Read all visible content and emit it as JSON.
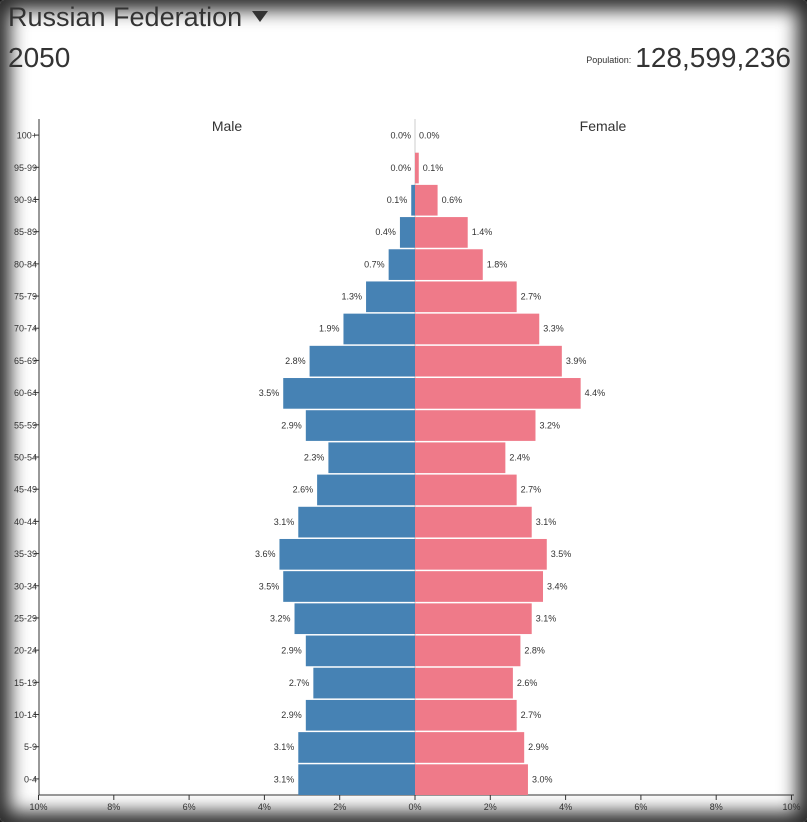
{
  "header": {
    "country": "Russian Federation",
    "year": "2050",
    "population_label": "Population:",
    "population_value": "128,599,236"
  },
  "colors": {
    "male": "#4682b4",
    "female": "#ef7a89"
  },
  "chart_data": {
    "type": "bar",
    "orientation": "horizontal-population-pyramid",
    "categories": [
      "100+",
      "95-99",
      "90-94",
      "85-89",
      "80-84",
      "75-79",
      "70-74",
      "65-69",
      "60-64",
      "55-59",
      "50-54",
      "45-49",
      "40-44",
      "35-39",
      "30-34",
      "25-29",
      "20-24",
      "15-19",
      "10-14",
      "5-9",
      "0-4"
    ],
    "series": [
      {
        "name": "Male",
        "values": [
          0.0,
          0.0,
          0.1,
          0.4,
          0.7,
          1.3,
          1.9,
          2.8,
          3.5,
          2.9,
          2.3,
          2.6,
          3.1,
          3.6,
          3.5,
          3.2,
          2.9,
          2.7,
          2.9,
          3.1,
          3.1
        ],
        "labels": [
          "0.0%",
          "0.0%",
          "0.1%",
          "0.4%",
          "0.7%",
          "1.3%",
          "1.9%",
          "2.8%",
          "3.5%",
          "2.9%",
          "2.3%",
          "2.6%",
          "3.1%",
          "3.6%",
          "3.5%",
          "3.2%",
          "2.9%",
          "2.7%",
          "2.9%",
          "3.1%",
          "3.1%"
        ]
      },
      {
        "name": "Female",
        "values": [
          0.0,
          0.1,
          0.6,
          1.4,
          1.8,
          2.7,
          3.3,
          3.9,
          4.4,
          3.2,
          2.4,
          2.7,
          3.1,
          3.5,
          3.4,
          3.1,
          2.8,
          2.6,
          2.7,
          2.9,
          3.0
        ],
        "labels": [
          "0.0%",
          "0.1%",
          "0.6%",
          "1.4%",
          "1.8%",
          "2.7%",
          "3.3%",
          "3.9%",
          "4.4%",
          "3.2%",
          "2.4%",
          "2.7%",
          "3.1%",
          "3.5%",
          "3.4%",
          "3.1%",
          "2.8%",
          "2.6%",
          "2.7%",
          "2.9%",
          "3.0%"
        ]
      }
    ],
    "x_ticks": [
      "10%",
      "8%",
      "6%",
      "4%",
      "2%",
      "0%",
      "2%",
      "4%",
      "6%",
      "8%",
      "10%"
    ],
    "x_range": [
      -10,
      10
    ],
    "unit": "%",
    "grid": false,
    "legend": "labels above each side"
  }
}
